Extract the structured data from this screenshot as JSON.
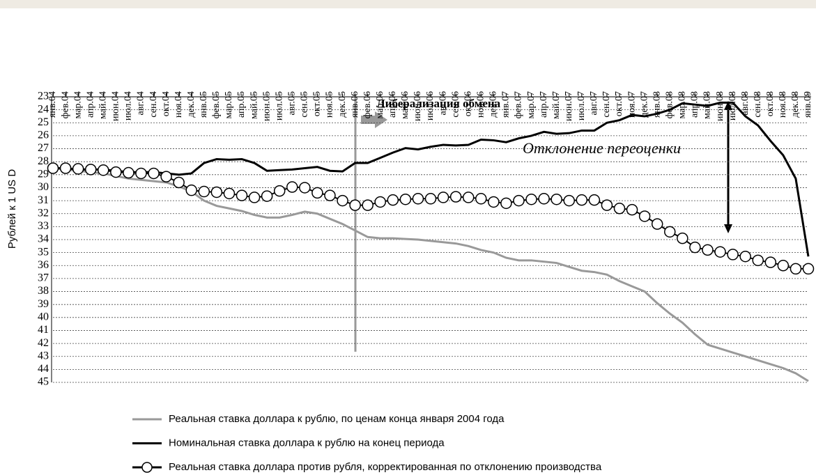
{
  "chart_data": {
    "type": "line",
    "y_label": "Рублей к 1 US D",
    "categories": [
      "янв.04",
      "фев.04",
      "мар.04",
      "апр.04",
      "май.04",
      "июн.04",
      "июл.04",
      "авг.04",
      "сен.04",
      "окт.04",
      "ноя.04",
      "дек.04",
      "янв.05",
      "фев.05",
      "мар.05",
      "апр.05",
      "май.05",
      "июн.05",
      "июл.05",
      "авг.05",
      "сен.05",
      "окт.05",
      "ноя.05",
      "дек.05",
      "янв.06",
      "фев.06",
      "мар.06",
      "апр.06",
      "май.06",
      "июн.06",
      "июл.06",
      "авг.06",
      "сен.06",
      "окт.06",
      "ноя.06",
      "дек.06",
      "янв.07",
      "фев.07",
      "мар.07",
      "апр.07",
      "май.07",
      "июн.07",
      "июл.07",
      "авг.07",
      "сен.07",
      "окт.07",
      "ноя.07",
      "дек.07",
      "янв.08",
      "фев.08",
      "мар.08",
      "апр.08",
      "май.08",
      "июн.08",
      "июл.08",
      "авг.08",
      "сен.08",
      "окт.08",
      "ноя.08",
      "дек.08",
      "янв.09"
    ],
    "series": [
      {
        "name": "Реальная ставка доллара к рублю, по ценам конца января 2004 года",
        "color": "#999999",
        "marker": false,
        "values": [
          28.5,
          28.6,
          28.7,
          28.8,
          28.9,
          29.1,
          29.3,
          29.4,
          29.5,
          29.6,
          29.9,
          30.3,
          31.0,
          31.4,
          31.6,
          31.8,
          32.1,
          32.3,
          32.3,
          32.1,
          31.85,
          32.0,
          32.4,
          32.8,
          33.3,
          33.8,
          33.9,
          33.9,
          33.95,
          34.0,
          34.1,
          34.2,
          34.3,
          34.5,
          34.8,
          35.0,
          35.4,
          35.6,
          35.6,
          35.7,
          35.8,
          36.1,
          36.4,
          36.5,
          36.7,
          37.2,
          37.6,
          38.0,
          38.9,
          39.7,
          40.4,
          41.3,
          42.1,
          42.4,
          42.7,
          43.0,
          43.3,
          43.6,
          43.9,
          44.3,
          44.9
        ]
      },
      {
        "name": "Номинальная ставка доллара к рублю на конец периода",
        "color": "#000000",
        "marker": false,
        "values": [
          28.5,
          28.5,
          28.6,
          28.6,
          28.6,
          28.7,
          28.8,
          28.8,
          28.8,
          28.9,
          29.0,
          28.9,
          28.1,
          27.8,
          27.85,
          27.8,
          28.1,
          28.7,
          28.65,
          28.6,
          28.5,
          28.4,
          28.7,
          28.75,
          28.1,
          28.1,
          27.7,
          27.3,
          26.95,
          27.05,
          26.85,
          26.7,
          26.75,
          26.7,
          26.3,
          26.35,
          26.5,
          26.2,
          26.0,
          25.7,
          25.85,
          25.8,
          25.6,
          25.6,
          25.0,
          24.8,
          24.4,
          24.5,
          24.3,
          24.0,
          23.5,
          23.6,
          23.7,
          23.45,
          23.45,
          24.5,
          25.2,
          26.4,
          27.5,
          29.3,
          35.3
        ]
      },
      {
        "name": "Реальная ставка доллара против рубля, корректированная по отклонению производства",
        "color": "#000000",
        "marker": true,
        "values": [
          28.5,
          28.5,
          28.55,
          28.6,
          28.65,
          28.8,
          28.85,
          28.9,
          28.9,
          29.15,
          29.6,
          30.2,
          30.3,
          30.35,
          30.45,
          30.6,
          30.75,
          30.65,
          30.25,
          29.95,
          30.0,
          30.4,
          30.6,
          31.0,
          31.35,
          31.35,
          31.1,
          30.95,
          30.9,
          30.85,
          30.85,
          30.75,
          30.7,
          30.75,
          30.85,
          31.1,
          31.2,
          31.0,
          30.9,
          30.85,
          30.9,
          31.0,
          30.95,
          30.95,
          31.35,
          31.6,
          31.7,
          32.2,
          32.8,
          33.4,
          33.9,
          34.6,
          34.8,
          34.95,
          35.15,
          35.3,
          35.6,
          35.75,
          36.0,
          36.25,
          36.25
        ]
      }
    ],
    "annotations": [
      "Либерализация обмена",
      "Отклонение переоценки"
    ],
    "ylim": [
      23,
      45
    ],
    "y_inverted": true,
    "yticks": [
      23,
      24,
      25,
      26,
      27,
      28,
      29,
      30,
      31,
      32,
      33,
      34,
      35,
      36,
      37,
      38,
      39,
      40,
      41,
      42,
      43,
      44,
      45
    ],
    "grid": true
  }
}
